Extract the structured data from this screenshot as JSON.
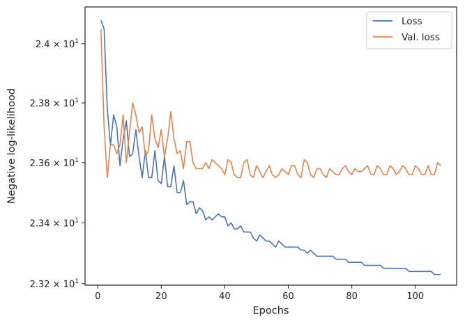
{
  "chart_data": {
    "type": "line",
    "title": "",
    "xlabel": "Epochs",
    "ylabel": "Negative log-likelihood",
    "xlim": [
      -4,
      113
    ],
    "ylim": [
      23.195,
      24.125
    ],
    "yscale": "log",
    "grid": false,
    "legend_position": "top-right",
    "x_ticks": [
      0,
      20,
      40,
      60,
      80,
      100
    ],
    "y_ticks": [
      {
        "value": 23.2,
        "mantissa": "2.32",
        "exponent": "1"
      },
      {
        "value": 23.4,
        "mantissa": "2.34",
        "exponent": "1"
      },
      {
        "value": 23.6,
        "mantissa": "2.36",
        "exponent": "1"
      },
      {
        "value": 23.8,
        "mantissa": "2.38",
        "exponent": "1"
      },
      {
        "value": 24.0,
        "mantissa": "2.4",
        "exponent": "1"
      }
    ],
    "tick_base": "10",
    "tick_times": "×",
    "x": [
      1,
      2,
      3,
      4,
      5,
      6,
      7,
      8,
      9,
      10,
      11,
      12,
      13,
      14,
      15,
      16,
      17,
      18,
      19,
      20,
      21,
      22,
      23,
      24,
      25,
      26,
      27,
      28,
      29,
      30,
      31,
      32,
      33,
      34,
      35,
      36,
      37,
      38,
      39,
      40,
      41,
      42,
      43,
      44,
      45,
      46,
      47,
      48,
      49,
      50,
      51,
      52,
      53,
      54,
      55,
      56,
      57,
      58,
      59,
      60,
      61,
      62,
      63,
      64,
      65,
      66,
      67,
      68,
      69,
      70,
      71,
      72,
      73,
      74,
      75,
      76,
      77,
      78,
      79,
      80,
      81,
      82,
      83,
      84,
      85,
      86,
      87,
      88,
      89,
      90,
      91,
      92,
      93,
      94,
      95,
      96,
      97,
      98,
      99,
      100,
      101,
      102,
      103,
      104,
      105,
      106,
      107,
      108
    ],
    "series": [
      {
        "name": "Loss",
        "color": "#4c72b0",
        "values": [
          24.08,
          24.05,
          23.78,
          23.66,
          23.76,
          23.72,
          23.59,
          23.68,
          23.74,
          23.62,
          23.63,
          23.71,
          23.62,
          23.55,
          23.64,
          23.55,
          23.55,
          23.64,
          23.54,
          23.53,
          23.62,
          23.52,
          23.52,
          23.59,
          23.5,
          23.5,
          23.54,
          23.46,
          23.47,
          23.47,
          23.43,
          23.45,
          23.44,
          23.41,
          23.42,
          23.41,
          23.42,
          23.43,
          23.42,
          23.42,
          23.39,
          23.4,
          23.38,
          23.38,
          23.39,
          23.37,
          23.37,
          23.37,
          23.35,
          23.34,
          23.36,
          23.35,
          23.34,
          23.34,
          23.33,
          23.32,
          23.34,
          23.33,
          23.32,
          23.32,
          23.32,
          23.32,
          23.32,
          23.31,
          23.31,
          23.3,
          23.31,
          23.3,
          23.29,
          23.29,
          23.29,
          23.29,
          23.29,
          23.29,
          23.28,
          23.28,
          23.28,
          23.28,
          23.27,
          23.27,
          23.27,
          23.27,
          23.27,
          23.26,
          23.26,
          23.26,
          23.26,
          23.26,
          23.26,
          23.25,
          23.25,
          23.25,
          23.25,
          23.25,
          23.25,
          23.25,
          23.25,
          23.24,
          23.24,
          23.24,
          23.24,
          23.24,
          23.24,
          23.24,
          23.24,
          23.23,
          23.23,
          23.23
        ]
      },
      {
        "name": "Val. loss",
        "color": "#dd8452",
        "values": [
          24.05,
          23.72,
          23.55,
          23.66,
          23.66,
          23.63,
          23.66,
          23.76,
          23.6,
          23.7,
          23.8,
          23.76,
          23.7,
          23.72,
          23.62,
          23.64,
          23.76,
          23.68,
          23.65,
          23.71,
          23.62,
          23.68,
          23.77,
          23.68,
          23.63,
          23.64,
          23.58,
          23.67,
          23.67,
          23.6,
          23.58,
          23.58,
          23.58,
          23.6,
          23.58,
          23.61,
          23.6,
          23.59,
          23.58,
          23.56,
          23.61,
          23.6,
          23.56,
          23.55,
          23.55,
          23.6,
          23.61,
          23.56,
          23.55,
          23.59,
          23.57,
          23.55,
          23.57,
          23.59,
          23.56,
          23.55,
          23.56,
          23.58,
          23.57,
          23.56,
          23.59,
          23.59,
          23.56,
          23.55,
          23.61,
          23.6,
          23.56,
          23.55,
          23.58,
          23.58,
          23.56,
          23.55,
          23.58,
          23.57,
          23.56,
          23.56,
          23.58,
          23.59,
          23.57,
          23.56,
          23.58,
          23.57,
          23.57,
          23.58,
          23.59,
          23.56,
          23.56,
          23.59,
          23.58,
          23.56,
          23.56,
          23.59,
          23.58,
          23.56,
          23.57,
          23.59,
          23.58,
          23.56,
          23.56,
          23.59,
          23.58,
          23.56,
          23.56,
          23.59,
          23.56,
          23.56,
          23.6,
          23.59
        ]
      }
    ]
  }
}
